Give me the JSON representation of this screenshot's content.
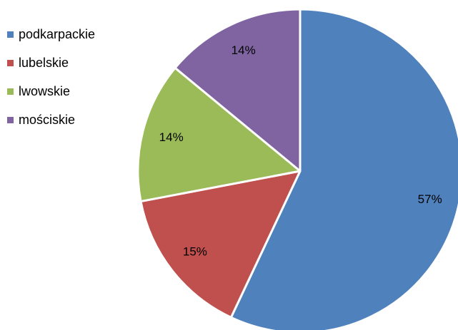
{
  "chart_data": {
    "type": "pie",
    "categories": [
      "podkarpackie",
      "lubelskie",
      "lwowskie",
      "mościskie"
    ],
    "values": [
      57,
      15,
      14,
      14
    ],
    "data_labels": [
      "57%",
      "15%",
      "14%",
      "14%"
    ],
    "colors": [
      "#4F81BD",
      "#C0504D",
      "#9BBB59",
      "#8064A2"
    ],
    "legend_position": "left",
    "start_angle_deg": 0,
    "direction": "clockwise"
  }
}
